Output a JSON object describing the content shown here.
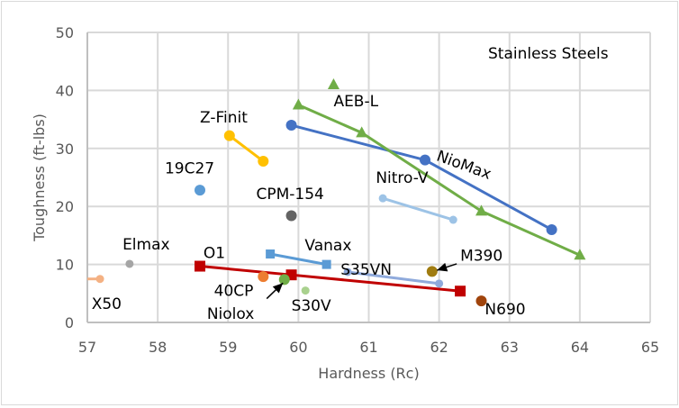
{
  "chart_data": {
    "type": "scatter",
    "title": "",
    "annotation_title": "Stainless Steels",
    "xlabel": "Hardness (Rc)",
    "ylabel": "Toughness (ft-lbs)",
    "xlim": [
      57,
      65
    ],
    "ylim": [
      0,
      50
    ],
    "xticks": [
      "57",
      "58",
      "59",
      "60",
      "61",
      "62",
      "63",
      "64",
      "65"
    ],
    "yticks": [
      "0",
      "10",
      "20",
      "30",
      "40",
      "50"
    ],
    "grid": true,
    "legend": "none",
    "series": [
      {
        "name": "NioMax",
        "color": "#4472c4",
        "marker": "circle",
        "line": true,
        "points": [
          [
            59.9,
            34
          ],
          [
            61.8,
            28
          ],
          [
            63.6,
            16
          ]
        ]
      },
      {
        "name": "AEB-L",
        "color": "#70ad47",
        "marker": "triangle",
        "line": true,
        "points": [
          [
            60.0,
            37.5
          ],
          [
            60.9,
            32.7
          ],
          [
            62.6,
            19.2
          ],
          [
            64.0,
            11.6
          ]
        ]
      },
      {
        "name": "AEB-L (single)",
        "color": "#70ad47",
        "marker": "triangle",
        "line": false,
        "points": [
          [
            60.5,
            41
          ]
        ]
      },
      {
        "name": "Z-Finit",
        "color": "#ffc000",
        "marker": "circle",
        "line": true,
        "points": [
          [
            59.02,
            32.2
          ],
          [
            59.5,
            27.8
          ]
        ]
      },
      {
        "name": "19C27",
        "color": "#5b9bd5",
        "marker": "circle",
        "line": false,
        "points": [
          [
            58.6,
            22.8
          ]
        ]
      },
      {
        "name": "CPM-154",
        "color": "#636363",
        "marker": "circle",
        "line": false,
        "points": [
          [
            59.9,
            18.4
          ]
        ]
      },
      {
        "name": "Nitro-V",
        "color": "#9dc3e6",
        "marker": "circle-small",
        "line": true,
        "points": [
          [
            61.2,
            21.4
          ],
          [
            62.2,
            17.7
          ]
        ]
      },
      {
        "name": "Elmax",
        "color": "#a5a5a5",
        "marker": "circle-small",
        "line": false,
        "points": [
          [
            57.6,
            10.1
          ]
        ]
      },
      {
        "name": "X50",
        "color": "#f4b183",
        "marker": "circle-small",
        "line": true,
        "points": [
          [
            56.8,
            7.5
          ],
          [
            57.18,
            7.5
          ]
        ]
      },
      {
        "name": "O1",
        "color": "#c00000",
        "marker": "square",
        "line": true,
        "points": [
          [
            58.6,
            9.7
          ],
          [
            59.9,
            8.2
          ],
          [
            62.3,
            5.4
          ]
        ]
      },
      {
        "name": "Vanax",
        "color": "#5b9bd5",
        "marker": "square-small",
        "line": true,
        "points": [
          [
            59.6,
            11.8
          ],
          [
            60.4,
            10
          ]
        ]
      },
      {
        "name": "40CP",
        "color": "#ed7d31",
        "marker": "circle",
        "line": false,
        "points": [
          [
            59.5,
            7.9
          ]
        ]
      },
      {
        "name": "Niolox",
        "color": "#70ad47",
        "marker": "circle",
        "line": false,
        "points": [
          [
            59.8,
            7.4
          ]
        ]
      },
      {
        "name": "S30V",
        "color": "#a9d18e",
        "marker": "circle-small",
        "line": false,
        "points": [
          [
            60.1,
            5.5
          ]
        ]
      },
      {
        "name": "S35VN",
        "color": "#8faadc",
        "marker": "circle-small",
        "line": true,
        "points": [
          [
            60.7,
            8.7
          ],
          [
            62.0,
            6.7
          ]
        ]
      },
      {
        "name": "M390",
        "color": "#a07c10",
        "marker": "circle",
        "line": false,
        "points": [
          [
            61.9,
            8.8
          ]
        ]
      },
      {
        "name": "N690",
        "color": "#a0440c",
        "marker": "circle",
        "line": false,
        "points": [
          [
            62.6,
            3.7
          ]
        ]
      }
    ],
    "annotations": [
      {
        "text": "NioMax",
        "x": 61.95,
        "y": 28.0,
        "rotate": 20
      },
      {
        "text": "AEB-L",
        "x": 60.5,
        "y": 37.3
      },
      {
        "text": "Z-Finit",
        "x": 58.6,
        "y": 34.5
      },
      {
        "text": "19C27",
        "x": 58.1,
        "y": 25.7
      },
      {
        "text": "CPM-154",
        "x": 59.4,
        "y": 21.3
      },
      {
        "text": "Nitro-V",
        "x": 61.1,
        "y": 24.1
      },
      {
        "text": "Elmax",
        "x": 57.5,
        "y": 12.6
      },
      {
        "text": "X50",
        "x": 57.06,
        "y": 2.3
      },
      {
        "text": "O1",
        "x": 58.65,
        "y": 11.1
      },
      {
        "text": "Vanax",
        "x": 60.09,
        "y": 12.4
      },
      {
        "text": "40CP",
        "x": 58.8,
        "y": 4.6
      },
      {
        "text": "Niolox",
        "x": 58.7,
        "y": 0.6
      },
      {
        "text": "S30V",
        "x": 59.9,
        "y": 2.0
      },
      {
        "text": "S35VN",
        "x": 60.6,
        "y": 8.2
      },
      {
        "text": "M390",
        "x": 62.3,
        "y": 10.6
      },
      {
        "text": "N690",
        "x": 62.65,
        "y": 1.4
      }
    ],
    "arrows": [
      {
        "name": "niolox-arrow",
        "from": [
          59.55,
          4.1
        ],
        "to": [
          59.78,
          6.8
        ]
      },
      {
        "name": "m390-arrow",
        "from": [
          62.25,
          10.1
        ],
        "to": [
          61.97,
          9.0
        ]
      }
    ]
  }
}
